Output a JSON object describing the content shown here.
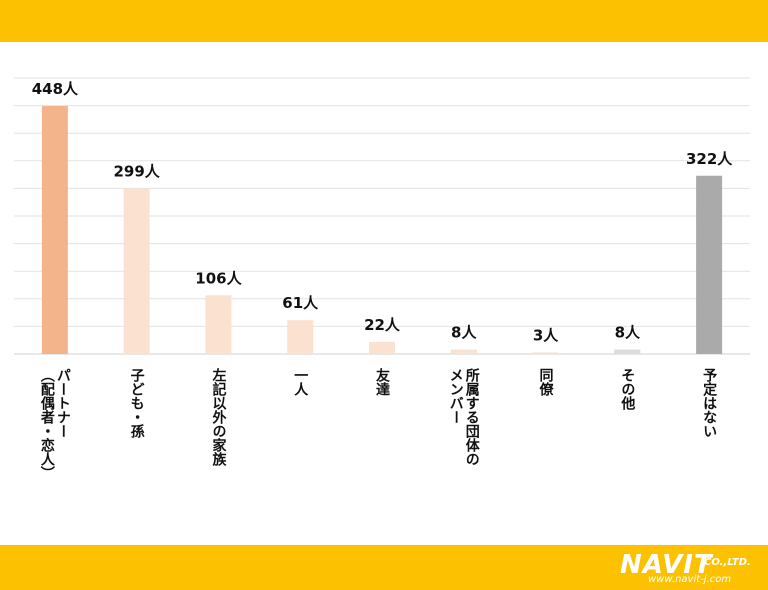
{
  "brand": {
    "main": "NAVIT",
    "suffix": "CO.,LTD.",
    "url": "www.navit-j.com",
    "band_color": "#fcc100"
  },
  "chart_data": {
    "type": "bar",
    "categories": [
      "パートナー（配偶者・恋人）",
      "子ども・孫",
      "左記以外の家族",
      "一人",
      "友達",
      "所属する団体のメンバー",
      "同僚",
      "その他",
      "予定はない"
    ],
    "category_lines": [
      [
        "パートナー",
        "（配偶者・恋人）"
      ],
      [
        "子ども・孫"
      ],
      [
        "左記以外の家族"
      ],
      [
        "一人"
      ],
      [
        "友達"
      ],
      [
        "所属する団体の",
        "メンバー"
      ],
      [
        "同僚"
      ],
      [
        "その他"
      ],
      [
        "予定はない"
      ]
    ],
    "values": [
      448,
      299,
      106,
      61,
      22,
      8,
      3,
      8,
      322
    ],
    "value_labels": [
      "448人",
      "299人",
      "106人",
      "61人",
      "22人",
      "8人",
      "3人",
      "8人",
      "322人"
    ],
    "colors": [
      "#f3b48c",
      "#fbe1d0",
      "#fbe1d0",
      "#fbe1d0",
      "#fbe1d0",
      "#fbe1d0",
      "#fbe1d0",
      "#dcdcdc",
      "#aaaaaa"
    ],
    "ylim": [
      0,
      500
    ],
    "grid": true
  }
}
